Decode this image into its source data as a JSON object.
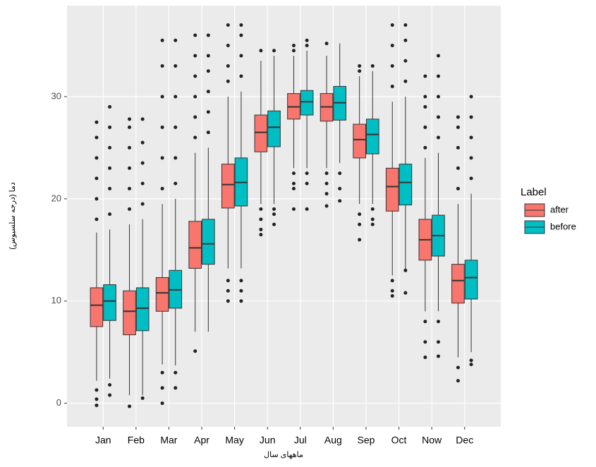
{
  "chart_data": {
    "type": "boxplot",
    "x_label": "ماههای سال",
    "y_label": "دما (درجه سلسیوس)",
    "categories": [
      "Jan",
      "Feb",
      "Mar",
      "Apr",
      "May",
      "Jun",
      "Jul",
      "Aug",
      "Sep",
      "Oct",
      "Now",
      "Dec"
    ],
    "ylim": [
      -2.3,
      38.9
    ],
    "yticks": [
      0,
      10,
      20,
      30
    ],
    "grid": true,
    "legend_title": "Label",
    "legend_position": "right",
    "series": [
      {
        "name": "after",
        "color": "#F8766D",
        "boxes": [
          {
            "low": 2.2,
            "q1": 7.5,
            "median": 9.6,
            "q3": 11.3,
            "high": 16.7,
            "outliers": [
              18,
              20,
              22,
              24,
              26,
              27.5,
              1.3,
              0.4,
              -0.2
            ]
          },
          {
            "low": 0.8,
            "q1": 6.7,
            "median": 9.0,
            "q3": 11.0,
            "high": 17.5,
            "outliers": [
              19,
              21,
              23,
              25,
              27,
              27.8,
              -0.3
            ]
          },
          {
            "low": 3.8,
            "q1": 9.0,
            "median": 10.8,
            "q3": 12.3,
            "high": 19.5,
            "outliers": [
              21,
              24,
              27,
              30,
              33,
              35.5,
              3,
              1.5,
              0
            ]
          },
          {
            "low": 7.0,
            "q1": 13.2,
            "median": 15.2,
            "q3": 17.8,
            "high": 24.5,
            "outliers": [
              26,
              28,
              30,
              32,
              34,
              36,
              5.1
            ]
          },
          {
            "low": 13.2,
            "q1": 19.1,
            "median": 21.4,
            "q3": 23.4,
            "high": 30.0,
            "outliers": [
              31.5,
              33,
              35,
              37,
              12,
              11,
              10
            ]
          },
          {
            "low": 19.5,
            "q1": 24.6,
            "median": 26.5,
            "q3": 28.2,
            "high": 33.5,
            "outliers": [
              34.5,
              19,
              18,
              17,
              16.5
            ]
          },
          {
            "low": 23.0,
            "q1": 27.8,
            "median": 29.0,
            "q3": 30.3,
            "high": 34.0,
            "outliers": [
              34.5,
              35,
              22.5,
              21.5,
              21,
              19
            ]
          },
          {
            "low": 23.0,
            "q1": 27.6,
            "median": 29.0,
            "q3": 30.3,
            "high": 34.0,
            "outliers": [
              35.2,
              22.5,
              21.5,
              20.5,
              19.3
            ]
          },
          {
            "low": 19.5,
            "q1": 24.0,
            "median": 25.8,
            "q3": 27.3,
            "high": 32.0,
            "outliers": [
              32.5,
              33,
              18.5,
              17.5,
              16
            ]
          },
          {
            "low": 12.5,
            "q1": 18.8,
            "median": 21.2,
            "q3": 23.0,
            "high": 29.5,
            "outliers": [
              31,
              33,
              35,
              37,
              12,
              11,
              10.5
            ]
          },
          {
            "low": 9.0,
            "q1": 14.0,
            "median": 16.0,
            "q3": 18.0,
            "high": 24.0,
            "outliers": [
              25,
              27,
              29,
              30,
              32,
              8,
              6,
              4.5
            ]
          },
          {
            "low": 4.5,
            "q1": 9.8,
            "median": 12.0,
            "q3": 13.6,
            "high": 19.5,
            "outliers": [
              21,
              23,
              25,
              27,
              28,
              3.5,
              2.2
            ]
          }
        ]
      },
      {
        "name": "before",
        "color": "#00BFC4",
        "boxes": [
          {
            "low": 2.4,
            "q1": 8.1,
            "median": 10.0,
            "q3": 11.6,
            "high": 17.0,
            "outliers": [
              18.5,
              21,
              23,
              25,
              27,
              29,
              1.8,
              0.8
            ]
          },
          {
            "low": 0.8,
            "q1": 7.1,
            "median": 9.3,
            "q3": 11.3,
            "high": 18.0,
            "outliers": [
              19.5,
              21.5,
              23.5,
              25.5,
              27.8,
              0.5
            ]
          },
          {
            "low": 3.7,
            "q1": 9.3,
            "median": 11.1,
            "q3": 13.0,
            "high": 20.0,
            "outliers": [
              21.5,
              24,
              27,
              30,
              33,
              35.5,
              3,
              1.5
            ]
          },
          {
            "low": 7.0,
            "q1": 13.6,
            "median": 15.6,
            "q3": 18.0,
            "high": 25.0,
            "outliers": [
              26.5,
              28.5,
              30.5,
              32.5,
              34,
              36
            ]
          },
          {
            "low": 13.2,
            "q1": 19.3,
            "median": 21.6,
            "q3": 24.0,
            "high": 30.5,
            "outliers": [
              32,
              34,
              36,
              37,
              12,
              11,
              10
            ]
          },
          {
            "low": 19.5,
            "q1": 25.1,
            "median": 27.0,
            "q3": 28.6,
            "high": 34.0,
            "outliers": [
              34.5,
              19,
              18.5,
              17.5
            ]
          },
          {
            "low": 23.0,
            "q1": 28.2,
            "median": 29.5,
            "q3": 30.6,
            "high": 34.5,
            "outliers": [
              35,
              35.5,
              22.5,
              21.5,
              19
            ]
          },
          {
            "low": 23.5,
            "q1": 27.7,
            "median": 29.4,
            "q3": 31.0,
            "high": 35.2,
            "outliers": [
              22.5,
              21,
              19.8
            ]
          },
          {
            "low": 19.5,
            "q1": 24.4,
            "median": 26.3,
            "q3": 27.8,
            "high": 32.5,
            "outliers": [
              33,
              19,
              18,
              17.5
            ]
          },
          {
            "low": 13.0,
            "q1": 19.4,
            "median": 21.6,
            "q3": 23.4,
            "high": 30.0,
            "outliers": [
              31.5,
              33.5,
              35.5,
              37,
              13,
              10.8
            ]
          },
          {
            "low": 9.0,
            "q1": 14.4,
            "median": 16.4,
            "q3": 18.4,
            "high": 24.5,
            "outliers": [
              26,
              28,
              30,
              32,
              34,
              8,
              6,
              4.6
            ]
          },
          {
            "low": 5.0,
            "q1": 10.2,
            "median": 12.3,
            "q3": 14.0,
            "high": 20.5,
            "outliers": [
              22,
              24,
              26,
              28,
              30,
              4.2,
              3.8
            ]
          }
        ]
      }
    ]
  }
}
